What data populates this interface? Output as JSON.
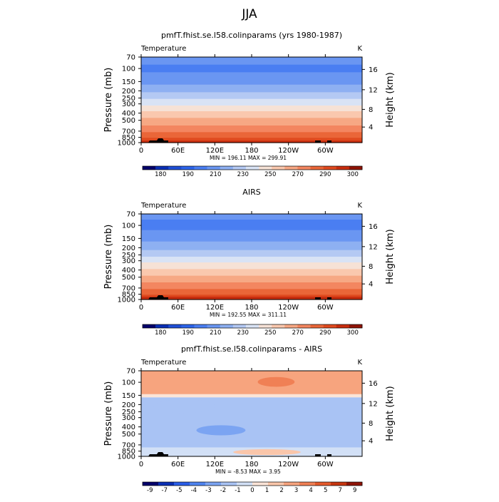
{
  "page_title": "JJA",
  "colors": {
    "abs_palette": [
      "#04006b",
      "#0a2fb4",
      "#1f4fd6",
      "#2c64ea",
      "#4a7ef2",
      "#6a96f2",
      "#8eb0f2",
      "#b4c9f3",
      "#d9e3f5",
      "#f6e2d6",
      "#fac8ae",
      "#f7a884",
      "#f38660",
      "#ea6638",
      "#df4a1f",
      "#c82d0e",
      "#8f1406"
    ],
    "diff_palette": [
      "#04006b",
      "#0a2fb4",
      "#2a5ee8",
      "#4f84f0",
      "#7ba4f2",
      "#a9c3f4",
      "#d2e0f6",
      "#fbe4d7",
      "#fac6aa",
      "#f7a47e",
      "#f08055",
      "#e55a2b",
      "#c63610",
      "#8f1406"
    ],
    "topography": "#000000"
  },
  "chart_data": [
    {
      "type": "heatmap",
      "title": "pmfT.fhist.se.l58.colinparams (yrs 1980-1987)",
      "left_string": "Temperature",
      "right_string": "K",
      "ylabel": "Pressure (mb)",
      "ylabel_right": "Height (km)",
      "x_ticks": [
        "0",
        "60E",
        "120E",
        "180",
        "120W",
        "60W"
      ],
      "y_ticks": [
        "70",
        "100",
        "150",
        "200",
        "250",
        "300",
        "400",
        "500",
        "700",
        "850",
        "1000"
      ],
      "y_ticks_right": [
        "16",
        "12",
        "8",
        "4"
      ],
      "stats": "MIN = 196.11   MAX = 299.91",
      "colorbar_labels": [
        "180",
        "190",
        "210",
        "230",
        "250",
        "270",
        "290",
        "300"
      ],
      "levels": [
        175,
        180,
        185,
        190,
        200,
        210,
        220,
        230,
        240,
        250,
        260,
        270,
        280,
        290,
        295,
        300
      ],
      "profile": [
        {
          "p": 70,
          "v": 204
        },
        {
          "p": 100,
          "v": 198
        },
        {
          "p": 150,
          "v": 206
        },
        {
          "p": 200,
          "v": 218
        },
        {
          "p": 250,
          "v": 228
        },
        {
          "p": 300,
          "v": 238
        },
        {
          "p": 400,
          "v": 253
        },
        {
          "p": 500,
          "v": 263
        },
        {
          "p": 700,
          "v": 279
        },
        {
          "p": 850,
          "v": 289
        },
        {
          "p": 1000,
          "v": 298
        }
      ]
    },
    {
      "type": "heatmap",
      "title": "AIRS",
      "left_string": "Temperature",
      "right_string": "K",
      "ylabel": "Pressure (mb)",
      "ylabel_right": "Height (km)",
      "x_ticks": [
        "0",
        "60E",
        "120E",
        "180",
        "120W",
        "60W"
      ],
      "y_ticks": [
        "70",
        "100",
        "150",
        "200",
        "250",
        "300",
        "400",
        "500",
        "700",
        "850",
        "1000"
      ],
      "y_ticks_right": [
        "16",
        "12",
        "8",
        "4"
      ],
      "stats": "MIN = 192.55   MAX = 311.11",
      "colorbar_labels": [
        "180",
        "190",
        "210",
        "230",
        "250",
        "270",
        "290",
        "300"
      ],
      "levels": [
        175,
        180,
        185,
        190,
        200,
        210,
        220,
        230,
        240,
        250,
        260,
        270,
        280,
        290,
        295,
        300
      ],
      "profile": [
        {
          "p": 70,
          "v": 203
        },
        {
          "p": 100,
          "v": 197
        },
        {
          "p": 150,
          "v": 206
        },
        {
          "p": 200,
          "v": 217
        },
        {
          "p": 250,
          "v": 227
        },
        {
          "p": 300,
          "v": 237
        },
        {
          "p": 400,
          "v": 252
        },
        {
          "p": 500,
          "v": 262
        },
        {
          "p": 700,
          "v": 278
        },
        {
          "p": 850,
          "v": 289
        },
        {
          "p": 1000,
          "v": 301
        }
      ]
    },
    {
      "type": "heatmap",
      "title": "pmfT.fhist.se.l58.colinparams - AIRS",
      "left_string": "Temperature",
      "right_string": "K",
      "ylabel": "Pressure (mb)",
      "ylabel_right": "Height (km)",
      "x_ticks": [
        "0",
        "60E",
        "120E",
        "180",
        "120W",
        "60W"
      ],
      "y_ticks": [
        "70",
        "100",
        "150",
        "200",
        "250",
        "300",
        "400",
        "500",
        "700",
        "850",
        "1000"
      ],
      "y_ticks_right": [
        "16",
        "12",
        "8",
        "4"
      ],
      "stats": "MIN =  -8.53   MAX =   3.95",
      "colorbar_labels": [
        "-9",
        "-7",
        "-5",
        "-4",
        "-3",
        "-2",
        "-1",
        "0",
        "1",
        "2",
        "3",
        "4",
        "5",
        "7",
        "9"
      ],
      "levels": [
        -9,
        -7,
        -5,
        -4,
        -3,
        -2,
        -1,
        0,
        1,
        2,
        3,
        4,
        5,
        7,
        9
      ],
      "bands": [
        {
          "p_top": 70,
          "p_bot": 145,
          "v": 1.5
        },
        {
          "p_top": 145,
          "p_bot": 160,
          "v": -0.5
        },
        {
          "p_top": 160,
          "p_bot": 760,
          "v": -2.5
        },
        {
          "p_top": 760,
          "p_bot": 1000,
          "v": -1.5
        }
      ],
      "patches": [
        {
          "lon_from": 60,
          "lon_to": 115,
          "p_top": 88,
          "p_bot": 118,
          "v": 1.5
        },
        {
          "lon_from": 190,
          "lon_to": 250,
          "p_top": 85,
          "p_bot": 115,
          "v": 2.5
        },
        {
          "lon_from": 90,
          "lon_to": 170,
          "p_top": 380,
          "p_bot": 520,
          "v": -3.5
        },
        {
          "lon_from": 20,
          "lon_to": 120,
          "p_top": 170,
          "p_bot": 260,
          "v": -2.5
        },
        {
          "lon_from": 150,
          "lon_to": 260,
          "p_top": 800,
          "p_bot": 960,
          "v": 0.5
        }
      ]
    }
  ]
}
